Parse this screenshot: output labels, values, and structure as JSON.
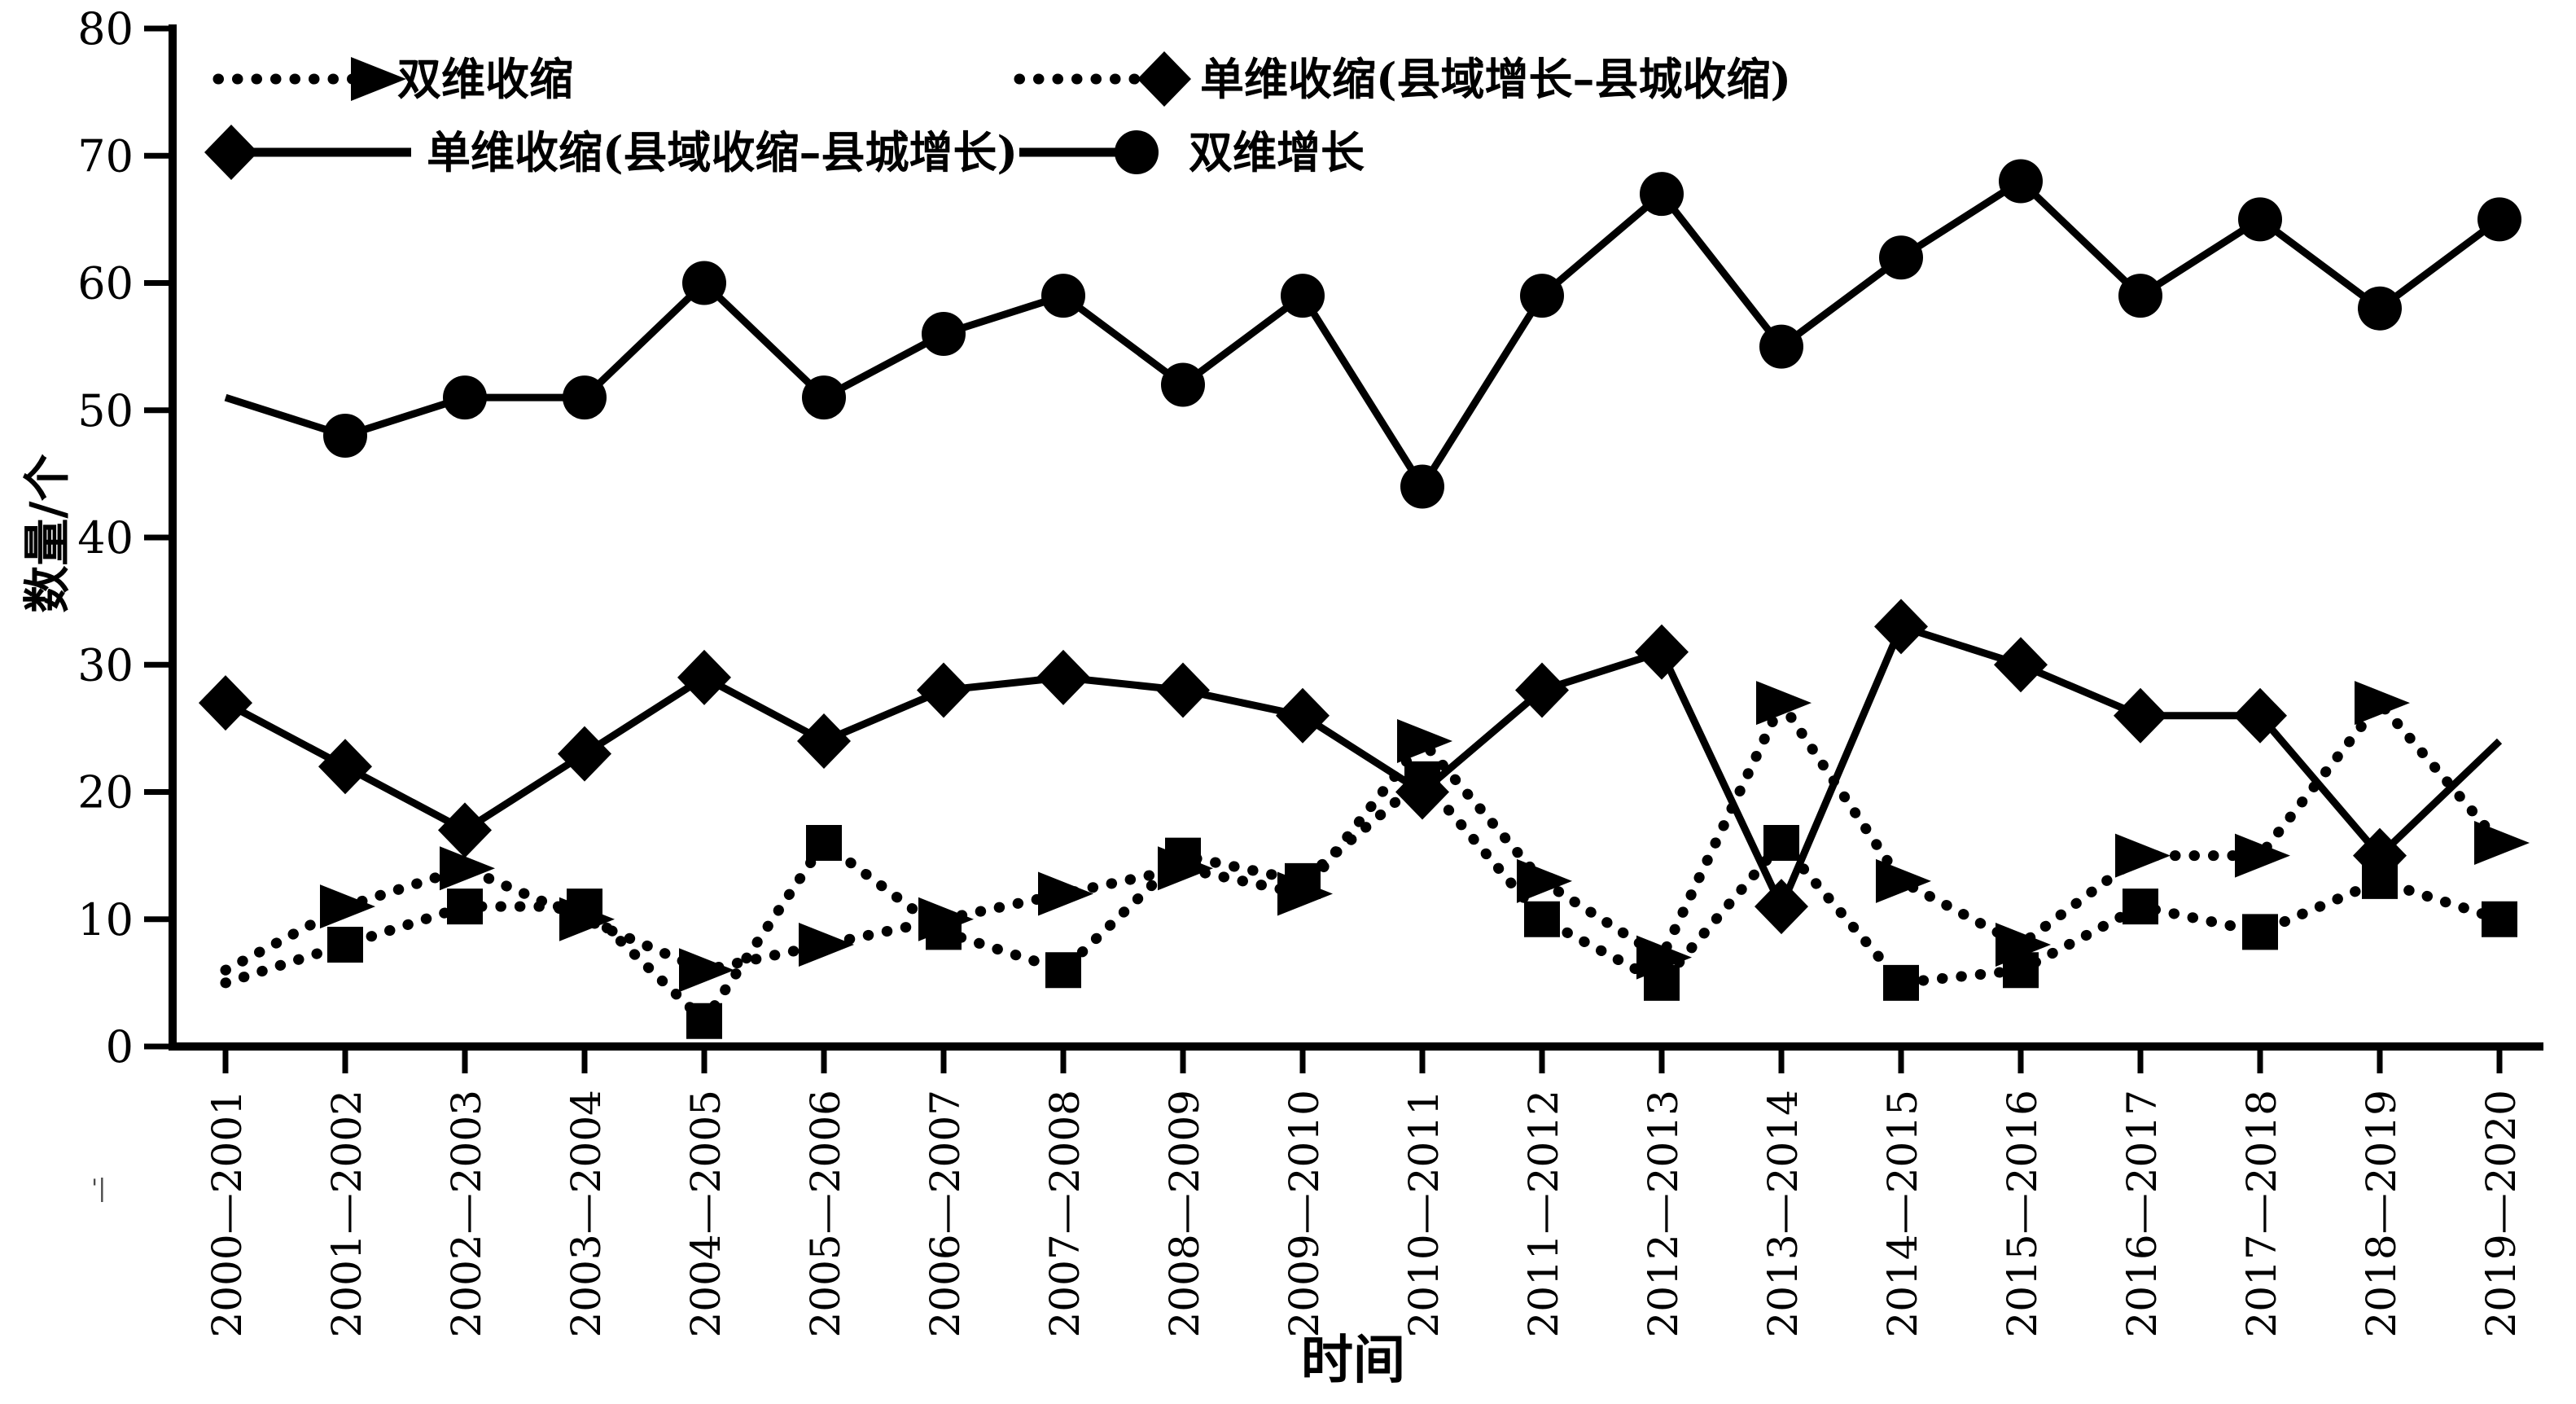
{
  "figure": {
    "background": "#ffffff",
    "foreground": "#000000"
  },
  "artifact_mark": "'|",
  "chart_data": {
    "type": "line",
    "title": "",
    "xlabel": "时间",
    "ylabel": "数量/个",
    "ylim": [
      0,
      80
    ],
    "yticks": [
      0,
      10,
      20,
      30,
      40,
      50,
      60,
      70,
      80
    ],
    "grid": false,
    "legend_position": "top-left-two-rows",
    "categories": [
      "2000—2001",
      "2001—2002",
      "2002—2003",
      "2003—2004",
      "2004—2005",
      "2005—2006",
      "2006—2007",
      "2007—2008",
      "2008—2009",
      "2009—2010",
      "2010—2011",
      "2011—2012",
      "2012—2013",
      "2013—2014",
      "2014—2015",
      "2015—2016",
      "2016—2017",
      "2017—2018",
      "2018—2019",
      "2019—2020"
    ],
    "series": [
      {
        "name": "双维收缩",
        "line_style": "dotted",
        "marker": "triangle-right",
        "legend_marker": "triangle-right",
        "legend_marker_side": "right",
        "first_marker": false,
        "last_marker": true,
        "values": [
          6,
          11,
          14,
          10,
          6,
          8,
          10,
          12,
          14,
          12,
          24,
          13,
          7,
          27,
          13,
          8,
          15,
          15,
          27,
          16
        ]
      },
      {
        "name": "单维收缩(县域增长–县城收缩)",
        "line_style": "dotted",
        "marker": "square",
        "legend_marker": "diamond",
        "legend_marker_side": "right",
        "first_marker": false,
        "last_marker": true,
        "values": [
          5,
          8,
          11,
          11,
          2,
          16,
          9,
          6,
          15,
          13,
          21,
          10,
          5,
          16,
          5,
          6,
          11,
          9,
          13,
          10
        ]
      },
      {
        "name": "单维收缩(县域收缩–县城增长)",
        "line_style": "solid",
        "marker": "diamond",
        "legend_marker": "diamond",
        "legend_marker_side": "left",
        "first_marker": true,
        "last_marker": false,
        "values": [
          27,
          22,
          17,
          23,
          29,
          24,
          28,
          29,
          28,
          26,
          20,
          28,
          31,
          11,
          33,
          30,
          26,
          26,
          15,
          24
        ]
      },
      {
        "name": "双维增长",
        "line_style": "solid",
        "marker": "circle",
        "legend_marker": "circle",
        "legend_marker_side": "right",
        "first_marker": false,
        "last_marker": true,
        "values": [
          51,
          48,
          51,
          51,
          60,
          51,
          56,
          59,
          52,
          59,
          44,
          59,
          67,
          55,
          62,
          68,
          59,
          65,
          58,
          65
        ]
      }
    ]
  }
}
